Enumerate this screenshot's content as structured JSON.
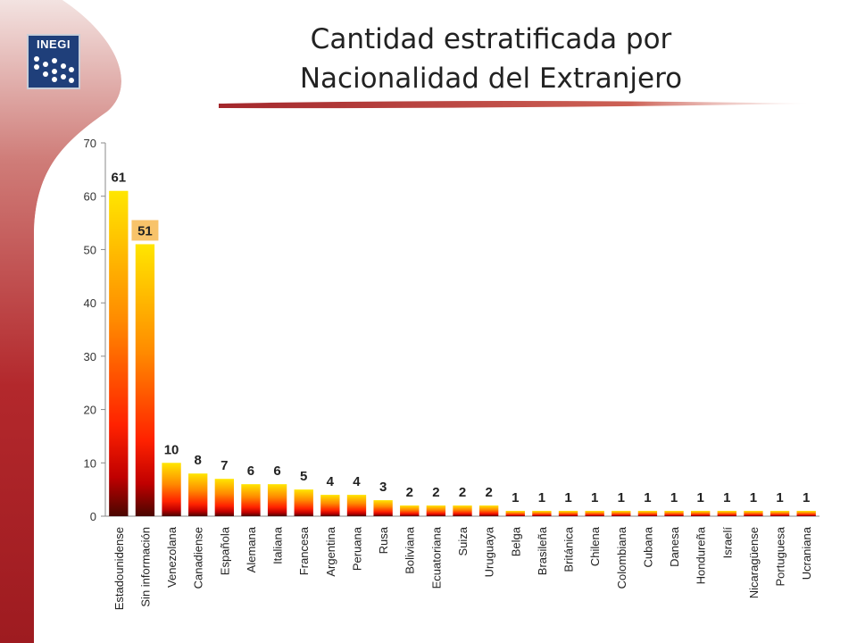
{
  "slide": {
    "title_line1": "Cantidad estratificada por",
    "title_line2": "Nacionalidad del Extranjero",
    "logo_text": "INEGI"
  },
  "colors": {
    "panel_red": "#b0262b",
    "rule_red": "#c0392b",
    "bar_top": "#ffe000",
    "bar_mid": "#ff3000",
    "bar_bottom": "#5a0a00",
    "label_highlight": "#f8c36a"
  },
  "chart_data": {
    "type": "bar",
    "title": "Cantidad estratificada por Nacionalidad del Extranjero",
    "xlabel": "",
    "ylabel": "",
    "ylim": [
      0,
      70
    ],
    "yticks": [
      0,
      10,
      20,
      30,
      40,
      50,
      60,
      70
    ],
    "grid": false,
    "legend": "none",
    "categories": [
      "Estadounidense",
      "Sin información",
      "Venezolana",
      "Canadiense",
      "Española",
      "Alemana",
      "Italiana",
      "Francesa",
      "Argentina",
      "Peruana",
      "Rusa",
      "Boliviana",
      "Ecuatoriana",
      "Suiza",
      "Uruguaya",
      "Belga",
      "Brasileña",
      "Británica",
      "Chilena",
      "Colombiana",
      "Cubana",
      "Danesa",
      "Hondureña",
      "Israelí",
      "Nicaragüense",
      "Portuguesa",
      "Ucraniana"
    ],
    "values": [
      61,
      51,
      10,
      8,
      7,
      6,
      6,
      5,
      4,
      4,
      3,
      2,
      2,
      2,
      2,
      1,
      1,
      1,
      1,
      1,
      1,
      1,
      1,
      1,
      1,
      1,
      1
    ]
  }
}
